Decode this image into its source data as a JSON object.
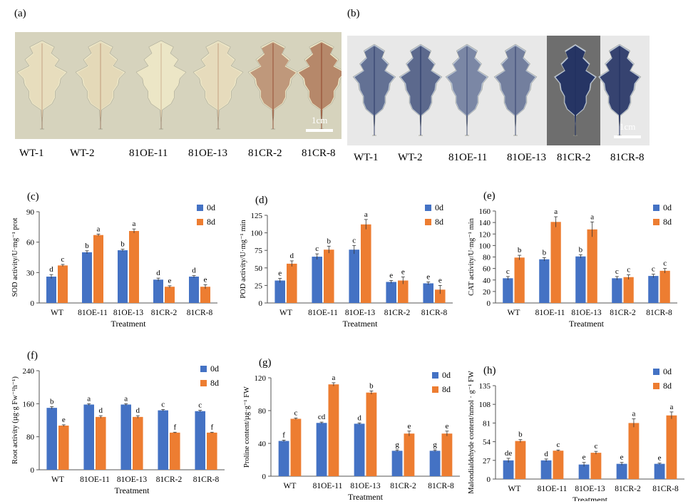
{
  "photos": [
    {
      "letter": "(a)",
      "scale": "1cm",
      "labels": [
        "WT-1",
        "WT-2",
        "81OE-11",
        "81OE-13",
        "81CR-2",
        "81CR-8"
      ],
      "stain": "DAB",
      "bg_color": "#d6d3bd",
      "leaf_color": "#ece6c6",
      "stain_color": "#8a3a1f"
    },
    {
      "letter": "(b)",
      "scale": "1cm",
      "labels": [
        "WT-1",
        "WT-2",
        "81OE-11",
        "81OE-13",
        "81CR-2",
        "81CR-8"
      ],
      "stain": "NBT",
      "bg_color": "#e8e8e8",
      "leaf_color": "#b9c4d4",
      "stain_color": "#1e2d5e"
    }
  ],
  "legend": {
    "series0": "0d",
    "series1": "8d"
  },
  "colors": {
    "series0": "#4472c4",
    "series1": "#ed7d31"
  },
  "chart_data": [
    {
      "letter": "(c)",
      "type": "bar",
      "categories": [
        "WT",
        "81OE-11",
        "81OE-13",
        "81CR-2",
        "81CR-8"
      ],
      "ylabel": "SOD activity/U·mg⁻¹ prot",
      "xlabel": "Treatment",
      "ylim": [
        0,
        90
      ],
      "yticks": [
        0,
        30,
        60,
        90
      ],
      "series": [
        {
          "name": "0d",
          "values": [
            26,
            50,
            52,
            23,
            26
          ],
          "errors": [
            2,
            1.5,
            1,
            1.5,
            1
          ],
          "letters": [
            "d",
            "b",
            "b",
            "d",
            "d"
          ]
        },
        {
          "name": "8d",
          "values": [
            37,
            67,
            71,
            16,
            16
          ],
          "errors": [
            1,
            1,
            2,
            1,
            2
          ],
          "letters": [
            "c",
            "a",
            "a",
            "e",
            "e"
          ]
        }
      ]
    },
    {
      "letter": "(d)",
      "type": "bar",
      "categories": [
        "WT",
        "81OE-11",
        "81OE-13",
        "81CR-2",
        "81CR-8"
      ],
      "ylabel": "POD activity/U·mg⁻¹ min",
      "xlabel": "Treatment",
      "ylim": [
        0,
        125
      ],
      "yticks": [
        0,
        25,
        50,
        75,
        100,
        125
      ],
      "series": [
        {
          "name": "0d",
          "values": [
            32,
            66,
            76,
            30,
            28
          ],
          "errors": [
            3,
            4,
            6,
            2,
            2
          ],
          "letters": [
            "e",
            "c",
            "c",
            "e",
            "e"
          ]
        },
        {
          "name": "8d",
          "values": [
            56,
            76,
            112,
            32,
            19
          ],
          "errors": [
            4,
            5,
            7,
            5,
            6
          ],
          "letters": [
            "d",
            "b",
            "a",
            "e",
            "e"
          ]
        }
      ]
    },
    {
      "letter": "(e)",
      "type": "bar",
      "categories": [
        "WT",
        "81OE-11",
        "81OE-13",
        "81CR-2",
        "81CR-8"
      ],
      "ylabel": "CAT activity/U·mg⁻¹ min",
      "xlabel": "Treatment",
      "ylim": [
        0,
        160
      ],
      "yticks": [
        0,
        20,
        40,
        60,
        80,
        100,
        120,
        140,
        160
      ],
      "series": [
        {
          "name": "0d",
          "values": [
            43,
            76,
            81,
            43,
            47
          ],
          "errors": [
            3,
            3,
            3,
            3,
            3
          ],
          "letters": [
            "c",
            "b",
            "b",
            "c",
            "c"
          ]
        },
        {
          "name": "8d",
          "values": [
            79,
            141,
            128,
            45,
            56
          ],
          "errors": [
            4,
            9,
            13,
            4,
            4
          ],
          "letters": [
            "b",
            "a",
            "a",
            "c",
            "c"
          ]
        }
      ]
    },
    {
      "letter": "(f)",
      "type": "bar",
      "categories": [
        "WT",
        "81OE-11",
        "81OE-13",
        "81CR-2",
        "81CR-8"
      ],
      "ylabel": "Root activity (µg·g Fw⁻¹h⁻¹)",
      "xlabel": "Treatment",
      "ylim": [
        0,
        240
      ],
      "yticks": [
        0,
        80,
        160,
        240
      ],
      "series": [
        {
          "name": "0d",
          "values": [
            150,
            158,
            158,
            144,
            142
          ],
          "errors": [
            3,
            2,
            2,
            2,
            2
          ],
          "letters": [
            "b",
            "a",
            "a",
            "c",
            "c"
          ]
        },
        {
          "name": "8d",
          "values": [
            107,
            128,
            128,
            90,
            90
          ],
          "errors": [
            2,
            3,
            3,
            1,
            1
          ],
          "letters": [
            "e",
            "d",
            "d",
            "f",
            "f"
          ]
        }
      ]
    },
    {
      "letter": "(g)",
      "type": "bar",
      "categories": [
        "WT",
        "81OE-11",
        "81OE-13",
        "81CR-2",
        "81CR-8"
      ],
      "ylabel": "Proline content/µg·g⁻¹ FW",
      "xlabel": "Treatment",
      "ylim": [
        0,
        120
      ],
      "yticks": [
        0,
        40,
        80,
        120
      ],
      "series": [
        {
          "name": "0d",
          "values": [
            43,
            65,
            64,
            31,
            31
          ],
          "errors": [
            1,
            1,
            1,
            1,
            1
          ],
          "letters": [
            "f",
            "cd",
            "d",
            "g",
            "g"
          ]
        },
        {
          "name": "8d",
          "values": [
            70,
            112,
            102,
            52,
            52
          ],
          "errors": [
            1,
            2,
            2,
            3,
            3
          ],
          "letters": [
            "c",
            "a",
            "b",
            "e",
            "e"
          ]
        }
      ]
    },
    {
      "letter": "(h)",
      "type": "bar",
      "categories": [
        "WT",
        "81OE-11",
        "81OE-13",
        "81CR-2",
        "81CR-8"
      ],
      "ylabel": "Malondialdehyde content/nmol · g⁻¹ FW",
      "xlabel": "Treatment",
      "ylim": [
        0,
        135
      ],
      "yticks": [
        0,
        27,
        54,
        81,
        108,
        135
      ],
      "series": [
        {
          "name": "0d",
          "values": [
            27,
            27,
            21,
            22,
            22
          ],
          "errors": [
            3,
            2,
            3,
            2,
            1
          ],
          "letters": [
            "de",
            "d",
            "e",
            "e",
            "e"
          ]
        },
        {
          "name": "8d",
          "values": [
            55,
            41,
            38,
            81,
            92
          ],
          "errors": [
            2,
            1,
            2,
            6,
            5
          ],
          "letters": [
            "b",
            "c",
            "c",
            "a",
            "a"
          ]
        }
      ]
    }
  ]
}
